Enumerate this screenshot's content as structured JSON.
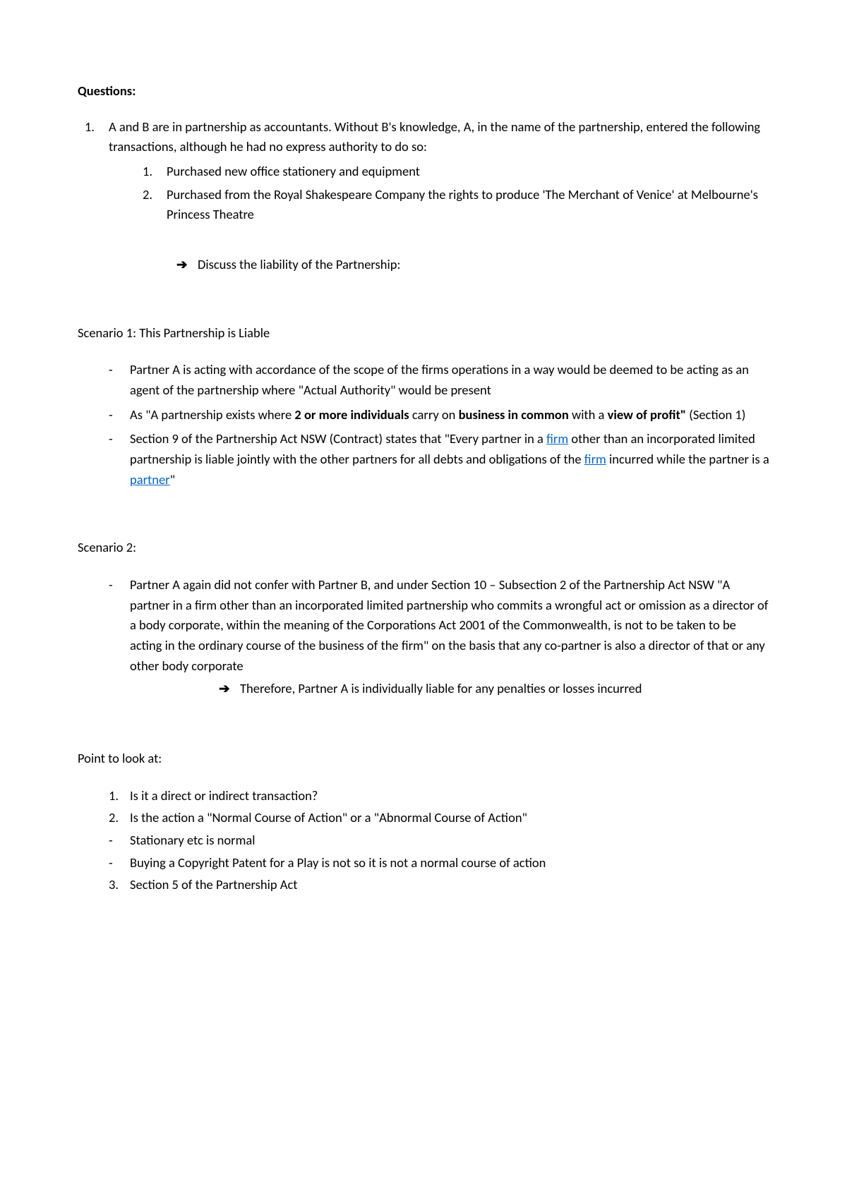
{
  "questions_heading": "Questions:",
  "q1_intro": "A and B are in partnership as accountants. Without B's knowledge, A, in the name of the partnership, entered the following transactions, although he had no express authority to do so:",
  "q1_sub1": "Purchased new office stationery and equipment",
  "q1_sub2": "Purchased from the Royal Shakespeare Company the rights to produce 'The Merchant of Venice' at Melbourne's Princess Theatre",
  "discuss_prompt": "Discuss the liability of the Partnership:",
  "scenario1_title": "Scenario 1: This Partnership is Liable",
  "s1_p1": "Partner A is acting with accordance of the scope of the firms operations in a way would be deemed to be acting as an agent of the partnership where \"Actual Authority\" would be present",
  "s1_p2_a": "As \"A partnership exists where ",
  "s1_p2_b": "2 or more individuals",
  "s1_p2_c": " carry on ",
  "s1_p2_d": "business in common",
  "s1_p2_e": " with a ",
  "s1_p2_f": "view of profit\"",
  "s1_p2_g": " (Section 1)",
  "s1_p3_a": "Section 9 of the Partnership Act NSW (Contract) states that \"Every partner in a ",
  "s1_p3_firm1": "firm",
  "s1_p3_b": " other than an incorporated limited partnership is liable jointly with the other partners for all debts and obligations of the ",
  "s1_p3_firm2": "firm",
  "s1_p3_c": " incurred while the partner is a ",
  "s1_p3_partner": "partner",
  "s1_p3_d": "\"",
  "scenario2_title": "Scenario 2:",
  "s2_p1": "Partner A again did not confer with Partner B, and under Section 10 – Subsection 2 of the Partnership Act NSW \"A partner in a firm other than an incorporated limited partnership who commits a wrongful act or omission as a director of a body corporate, within the meaning of the Corporations Act 2001 of the Commonwealth, is not to be taken to be acting in the ordinary course of the business of the firm\" on the basis that any co-partner is also a director of that or any other body corporate",
  "s2_arrow": "Therefore, Partner A is individually liable for any penalties or losses incurred",
  "points_title": "Point to look at:",
  "pt1": "Is it a direct or indirect transaction?",
  "pt2": "Is the action a \"Normal Course of Action\" or a \"Abnormal Course of Action\"",
  "pt3": "Stationary etc is normal",
  "pt4": "Buying a Copyright Patent for a Play is not so it is not a normal course of action",
  "pt5": "Section 5 of the Partnership Act"
}
